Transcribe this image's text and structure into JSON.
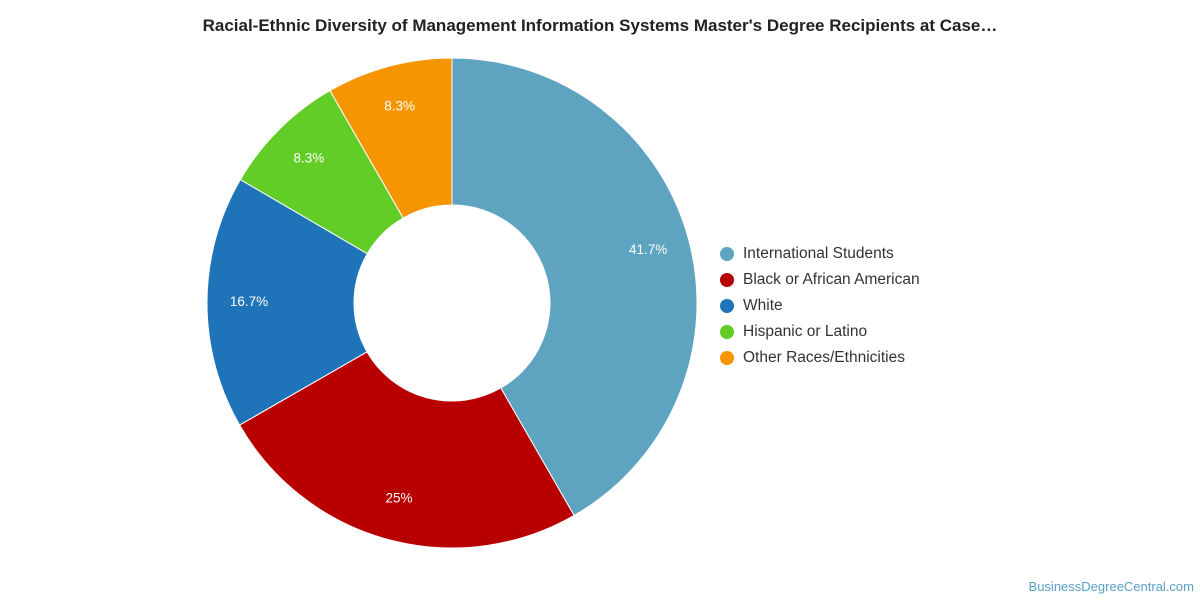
{
  "chart_data": {
    "type": "pie",
    "title": "Racial-Ethnic Diversity of Management Information Systems Master's Degree Recipients at Case…",
    "categories": [
      "International Students",
      "Black or African American",
      "White",
      "Hispanic or Latino",
      "Other Races/Ethnicities"
    ],
    "values": [
      41.7,
      25,
      16.7,
      8.3,
      8.3
    ],
    "value_labels": [
      "41.7%",
      "25%",
      "16.7%",
      "8.3%",
      "8.3%"
    ],
    "colors": [
      "#5ea3c0",
      "#b80000",
      "#1f73b8",
      "#62cd26",
      "#f79500"
    ],
    "legend_position": "right",
    "donut": true
  },
  "watermark": "BusinessDegreeCentral.com"
}
